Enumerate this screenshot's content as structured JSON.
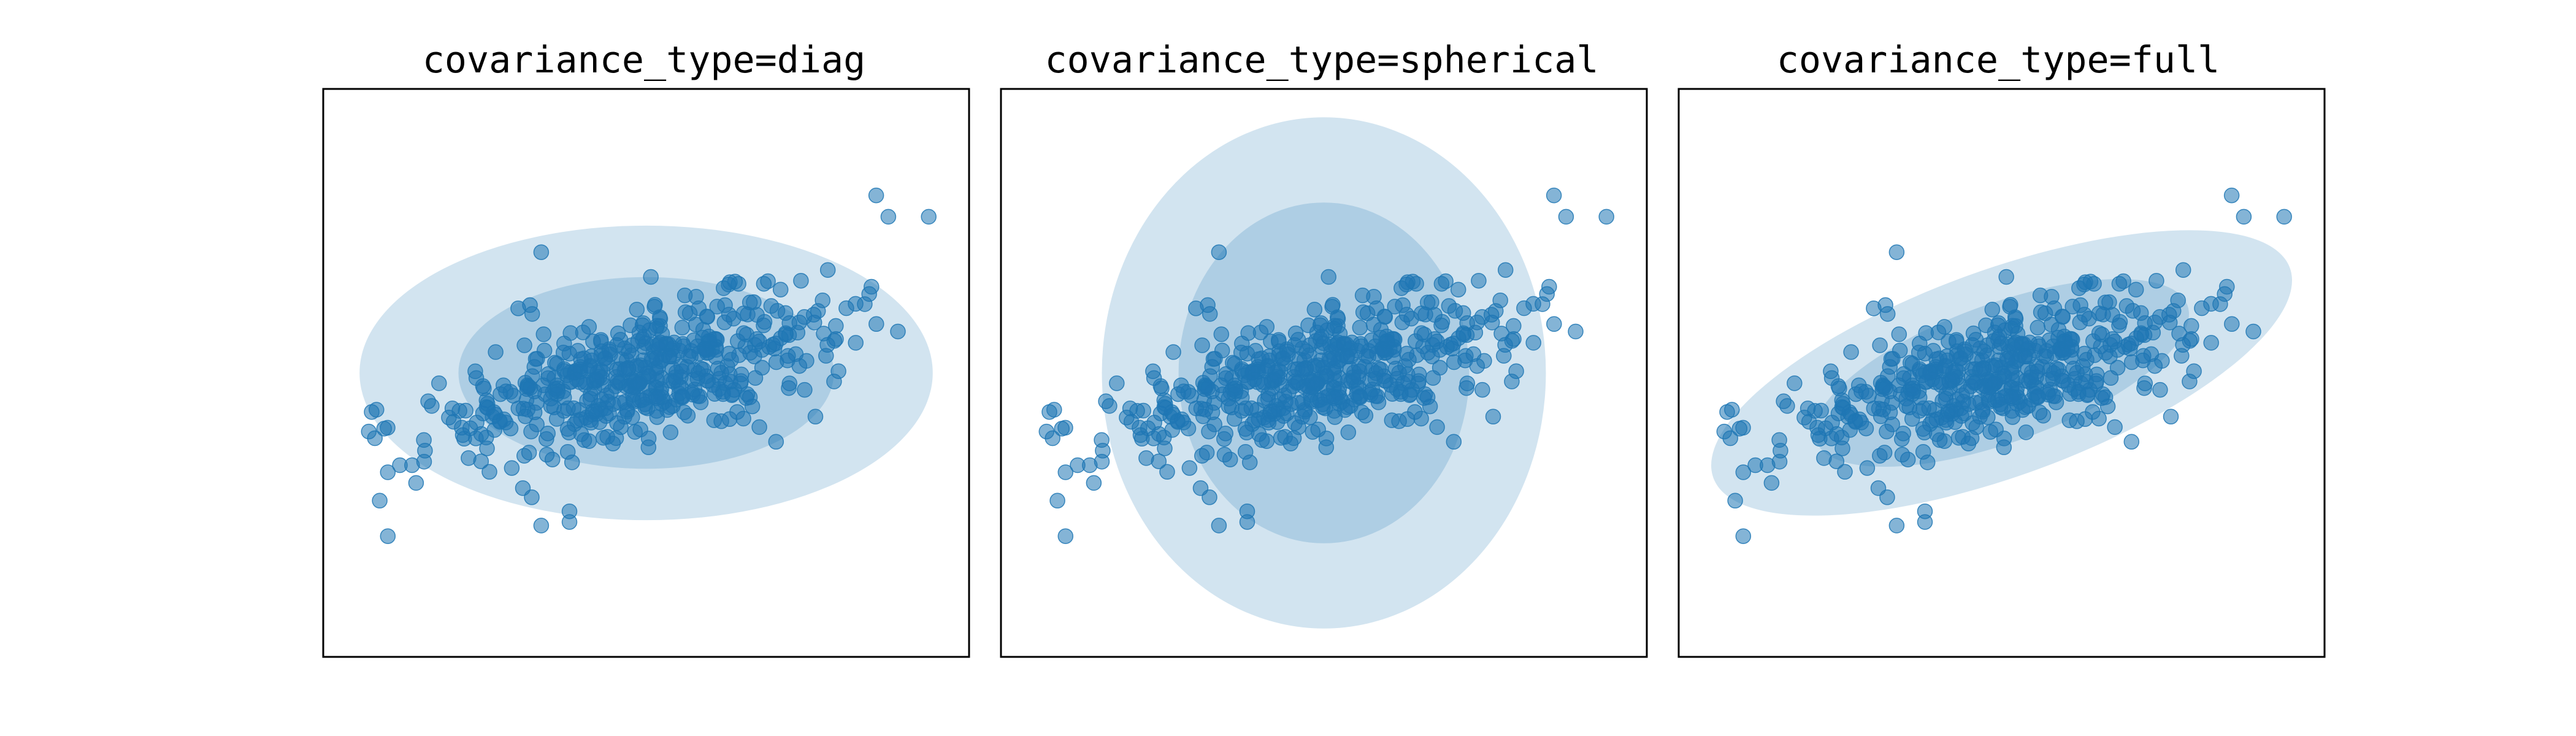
{
  "figure": {
    "background": "#ffffff",
    "marker_color": "#1f77b4",
    "marker_alpha": 0.55,
    "ellipse_color": "#1f77b4",
    "ellipse_alpha": [
      0.2,
      0.2
    ],
    "axes_ticks": "hidden"
  },
  "chart_data": [
    {
      "type": "scatter",
      "title": "covariance_type=diag",
      "xlabel": "",
      "ylabel": "",
      "xlim": [
        -4,
        4
      ],
      "ylim": [
        -4,
        4
      ],
      "grid": false,
      "ellipses": [
        {
          "center": [
            0.0,
            0.0
          ],
          "width": 7.1,
          "height": 4.15,
          "angle_deg": 0
        },
        {
          "center": [
            0.0,
            0.0
          ],
          "width": 4.65,
          "height": 2.7,
          "angle_deg": 0
        }
      ],
      "point_cloud": {
        "count": 500,
        "center": [
          0,
          0
        ],
        "std": [
          1.2,
          0.55
        ],
        "correlation": 0.55
      }
    },
    {
      "type": "scatter",
      "title": "covariance_type=spherical",
      "xlabel": "",
      "ylabel": "",
      "xlim": [
        -4,
        4
      ],
      "ylim": [
        -4,
        4
      ],
      "grid": false,
      "ellipses": [
        {
          "center": [
            0.0,
            0.0
          ],
          "width": 5.5,
          "height": 7.2,
          "angle_deg": 0
        },
        {
          "center": [
            0.0,
            0.0
          ],
          "width": 3.6,
          "height": 4.8,
          "angle_deg": 0
        }
      ],
      "point_cloud": {
        "count": 500,
        "center": [
          0,
          0
        ],
        "std": [
          1.2,
          0.55
        ],
        "correlation": 0.55
      }
    },
    {
      "type": "scatter",
      "title": "covariance_type=full",
      "xlabel": "",
      "ylabel": "",
      "xlim": [
        -4,
        4
      ],
      "ylim": [
        -4,
        4
      ],
      "grid": false,
      "ellipses": [
        {
          "center": [
            0.0,
            0.0
          ],
          "width": 7.6,
          "height": 2.9,
          "angle_deg": 20
        },
        {
          "center": [
            0.0,
            0.0
          ],
          "width": 4.9,
          "height": 1.95,
          "angle_deg": 20
        }
      ],
      "point_cloud": {
        "count": 500,
        "center": [
          0,
          0
        ],
        "std": [
          1.2,
          0.55
        ],
        "correlation": 0.55
      }
    }
  ],
  "outlier_points": [
    [
      -3.3,
      -1.8
    ],
    [
      -3.2,
      -1.4
    ],
    [
      -3.05,
      -1.3
    ],
    [
      -2.9,
      -1.3
    ],
    [
      -2.85,
      -1.55
    ],
    [
      -2.75,
      -1.25
    ],
    [
      -2.2,
      -1.2
    ],
    [
      -3.2,
      -2.3
    ],
    [
      -2.1,
      -0.7
    ],
    [
      -1.3,
      1.7
    ],
    [
      -1.3,
      -2.15
    ],
    [
      -0.95,
      -2.1
    ],
    [
      -0.95,
      -1.95
    ],
    [
      2.85,
      2.5
    ],
    [
      3.0,
      2.2
    ],
    [
      3.5,
      2.2
    ],
    [
      2.25,
      1.45
    ],
    [
      -3.4,
      -0.55
    ],
    [
      -2.7,
      -0.4
    ],
    [
      -2.4,
      -0.5
    ]
  ]
}
